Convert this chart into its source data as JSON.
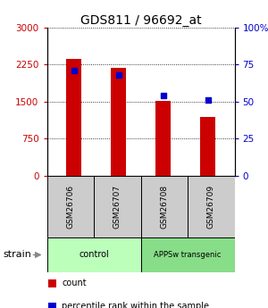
{
  "title": "GDS811 / 96692_at",
  "samples": [
    "GSM26706",
    "GSM26707",
    "GSM26708",
    "GSM26709"
  ],
  "counts": [
    2360,
    2190,
    1510,
    1190
  ],
  "percentiles": [
    71,
    68,
    54,
    51
  ],
  "ylim_left": [
    0,
    3000
  ],
  "ylim_right": [
    0,
    100
  ],
  "yticks_left": [
    0,
    750,
    1500,
    2250,
    3000
  ],
  "yticks_right": [
    0,
    25,
    50,
    75,
    100
  ],
  "ytick_labels_left": [
    "0",
    "750",
    "1500",
    "2250",
    "3000"
  ],
  "ytick_labels_right": [
    "0",
    "25",
    "50",
    "75",
    "100%"
  ],
  "bar_color": "#cc0000",
  "dot_color": "#0000cc",
  "groups": [
    {
      "label": "control",
      "indices": [
        0,
        1
      ],
      "color": "#bbffbb"
    },
    {
      "label": "APPSw transgenic",
      "indices": [
        2,
        3
      ],
      "color": "#88dd88"
    }
  ],
  "strain_label": "strain",
  "legend_items": [
    {
      "label": "count",
      "color": "#cc0000"
    },
    {
      "label": "percentile rank within the sample",
      "color": "#0000cc"
    }
  ],
  "grid_color": "black",
  "background_color": "#ffffff",
  "tick_label_color_left": "#cc0000",
  "tick_label_color_right": "#0000cc",
  "bar_width": 0.35,
  "dot_size": 18
}
